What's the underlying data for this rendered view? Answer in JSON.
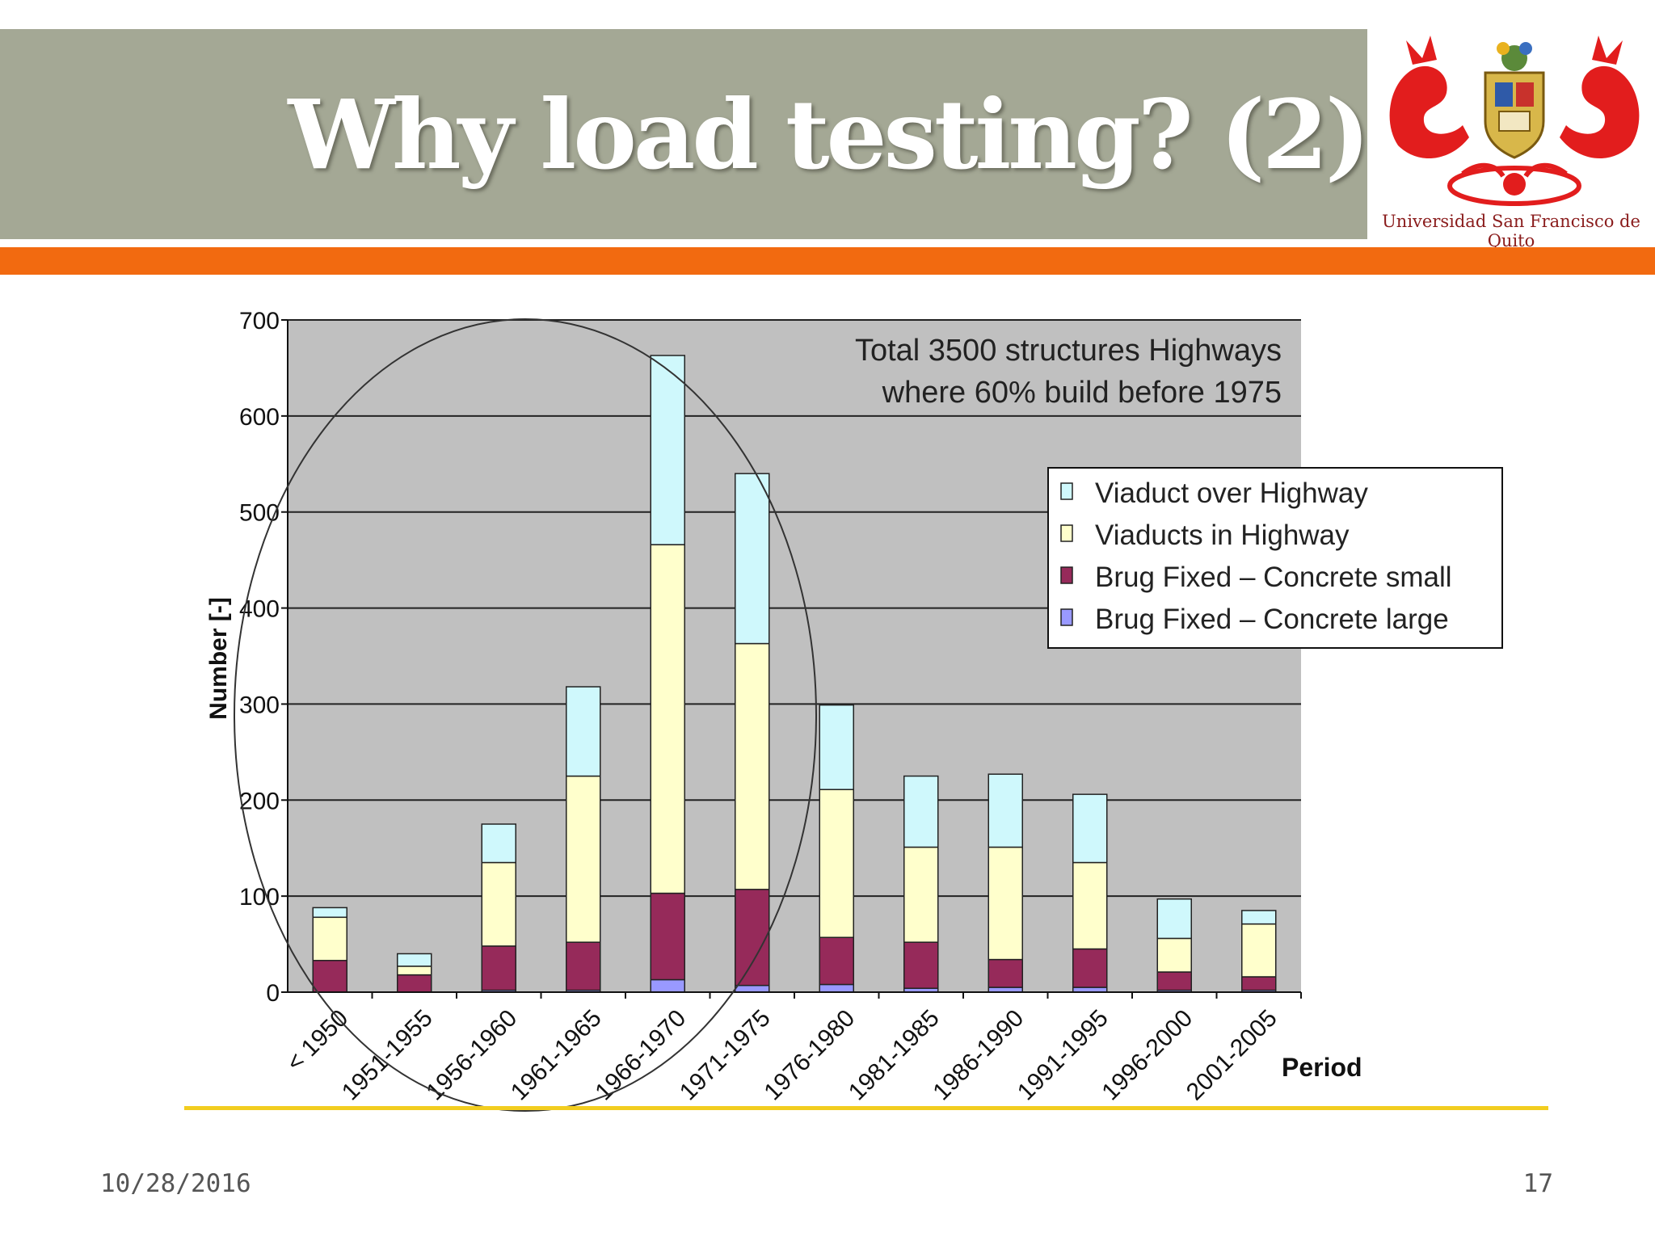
{
  "slide": {
    "title": "Why load testing? (2)",
    "date": "10/28/2016",
    "page_number": "17",
    "logo": {
      "caption": "Universidad San Francisco de Quito",
      "icon": "university-crest-icon"
    }
  },
  "colors": {
    "title_band": "#a4a895",
    "accent_bar": "#f26a10",
    "underline": "#f2cd1f",
    "plot_bg": "#c0c0c0",
    "viaduct_over": "#cff8fc",
    "viaducts_in": "#ffffcc",
    "concrete_small": "#962a5a",
    "concrete_large": "#9999ff"
  },
  "chart_data": {
    "type": "bar",
    "stacked": true,
    "title": "",
    "annotation": [
      "Total 3500 structures Highways",
      "where 60% build before 1975"
    ],
    "xlabel": "Period",
    "ylabel": "Number [-]",
    "ylim": [
      0,
      700
    ],
    "yticks": [
      0,
      100,
      200,
      300,
      400,
      500,
      600,
      700
    ],
    "grid": true,
    "legend_position": "right",
    "categories": [
      "< 1950",
      "1951-1955",
      "1956-1960",
      "1961-1965",
      "1966-1970",
      "1971-1975",
      "1976-1980",
      "1981-1985",
      "1986-1990",
      "1991-1995",
      "1996-2000",
      "2001-2005"
    ],
    "series": [
      {
        "name": "Brug Fixed – Concrete large",
        "color": "#9999ff",
        "values": [
          0,
          0,
          2,
          2,
          13,
          7,
          8,
          4,
          5,
          5,
          2,
          2
        ]
      },
      {
        "name": "Brug Fixed – Concrete small",
        "color": "#962a5a",
        "values": [
          33,
          18,
          46,
          50,
          90,
          100,
          49,
          48,
          29,
          40,
          19,
          14
        ]
      },
      {
        "name": "Viaducts in Highway",
        "color": "#ffffcc",
        "values": [
          45,
          9,
          87,
          173,
          363,
          256,
          154,
          99,
          117,
          90,
          35,
          55
        ]
      },
      {
        "name": "Viaduct over Highway",
        "color": "#cff8fc",
        "values": [
          10,
          13,
          40,
          93,
          197,
          177,
          88,
          74,
          76,
          71,
          41,
          14
        ]
      }
    ],
    "legend_order": [
      "Viaduct over Highway",
      "Viaducts in Highway",
      "Brug Fixed – Concrete small",
      "Brug Fixed – Concrete large"
    ],
    "highlight": {
      "shape": "ellipse",
      "periods": [
        "< 1950",
        "1951-1955",
        "1956-1960",
        "1961-1965",
        "1966-1970",
        "1971-1975"
      ]
    }
  }
}
